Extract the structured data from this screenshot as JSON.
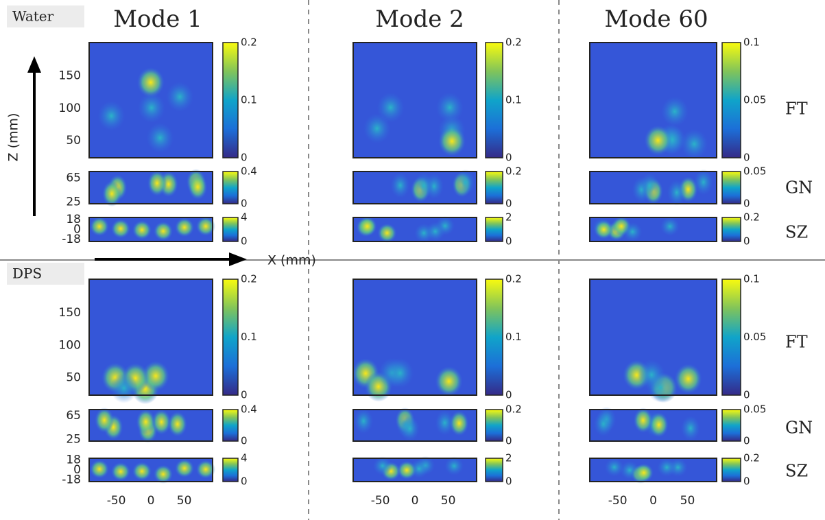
{
  "row_labels": [
    "Water",
    "DPS"
  ],
  "column_titles": [
    "Mode 1",
    "Mode 2",
    "Mode 60"
  ],
  "region_labels": [
    "FT",
    "GN",
    "SZ"
  ],
  "axis_labels": {
    "z": "Z (mm)",
    "x": "X (mm)"
  },
  "z_ticks": [
    [
      "150",
      "100",
      "50"
    ],
    [
      "65",
      "25"
    ],
    [
      "18",
      "0",
      "-18"
    ]
  ],
  "x_ticks": [
    "-50",
    "0",
    "50"
  ],
  "colorbars": [
    [
      [
        "0.2",
        "0.1",
        "0"
      ],
      [
        "0.4",
        "0"
      ],
      [
        "4",
        "0"
      ]
    ],
    [
      [
        "0.2",
        "0.1",
        "0"
      ],
      [
        "0.2",
        "0"
      ],
      [
        "2",
        "0"
      ]
    ],
    [
      [
        "0.1",
        "0.05",
        "0"
      ],
      [
        "0.05",
        "0"
      ],
      [
        "0.2",
        "0"
      ]
    ]
  ]
}
